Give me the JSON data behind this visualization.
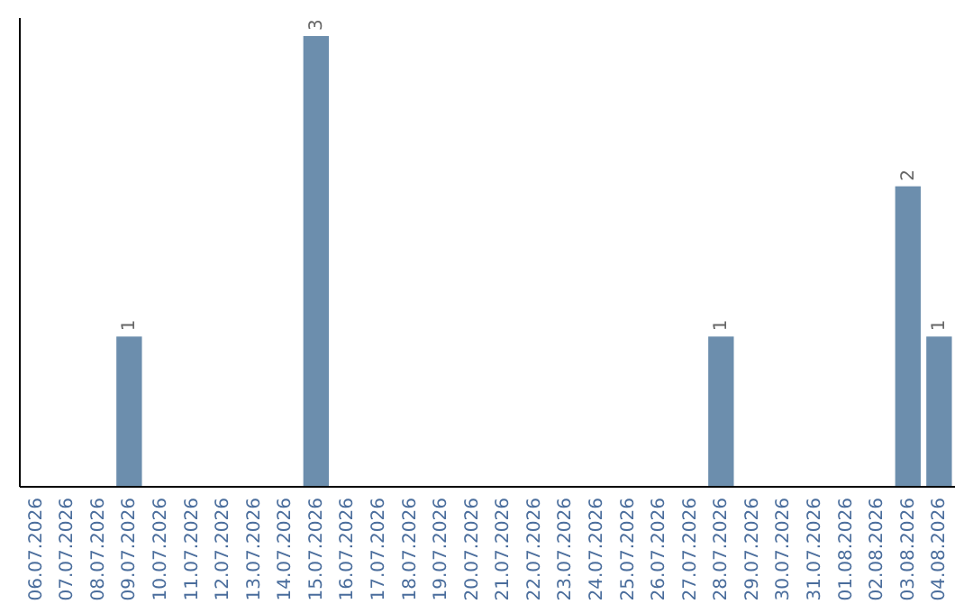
{
  "chart_data": {
    "type": "bar",
    "categories": [
      "06.07.2026",
      "07.07.2026",
      "08.07.2026",
      "09.07.2026",
      "10.07.2026",
      "11.07.2026",
      "12.07.2026",
      "13.07.2026",
      "14.07.2026",
      "15.07.2026",
      "16.07.2026",
      "17.07.2026",
      "18.07.2026",
      "19.07.2026",
      "20.07.2026",
      "21.07.2026",
      "22.07.2026",
      "23.07.2026",
      "24.07.2026",
      "25.07.2026",
      "26.07.2026",
      "27.07.2026",
      "28.07.2026",
      "29.07.2026",
      "30.07.2026",
      "31.07.2026",
      "01.08.2026",
      "02.08.2026",
      "03.08.2026",
      "04.08.2026"
    ],
    "values": [
      0,
      0,
      0,
      1,
      0,
      0,
      0,
      0,
      0,
      3,
      0,
      0,
      0,
      0,
      0,
      0,
      0,
      0,
      0,
      0,
      0,
      0,
      1,
      0,
      0,
      0,
      0,
      0,
      2,
      1
    ],
    "value_labels": [
      null,
      null,
      null,
      "1",
      null,
      null,
      null,
      null,
      null,
      "3",
      null,
      null,
      null,
      null,
      null,
      null,
      null,
      null,
      null,
      null,
      null,
      null,
      "1",
      null,
      null,
      null,
      null,
      null,
      "2",
      "1"
    ],
    "color": "#6c8ead"
  }
}
